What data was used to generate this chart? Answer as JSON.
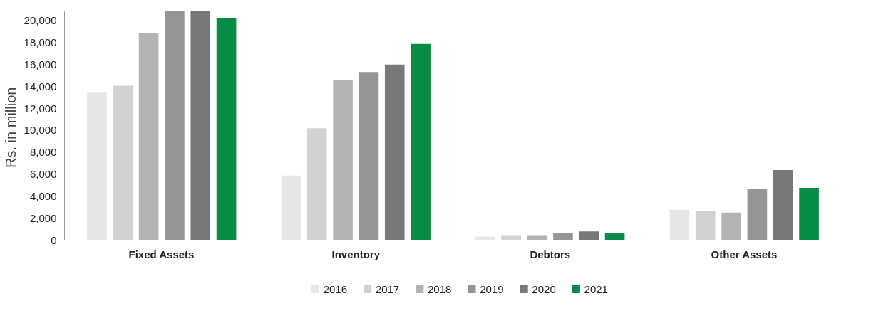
{
  "chart_data": {
    "type": "bar",
    "ylabel": "Rs.  in million",
    "categories": [
      "Fixed Assets",
      "Inventory",
      "Debtors",
      "Other Assets"
    ],
    "series": [
      {
        "name": "2016",
        "color": "#e5e6e8",
        "values": [
          13450,
          5890,
          330,
          2770
        ]
      },
      {
        "name": "2017",
        "color": "#d1d2d4",
        "values": [
          14080,
          10200,
          450,
          2640
        ]
      },
      {
        "name": "2018",
        "color": "#b2b3b5",
        "values": [
          18900,
          14640,
          450,
          2520
        ]
      },
      {
        "name": "2019",
        "color": "#949597",
        "values": [
          20900,
          15330,
          650,
          4710
        ]
      },
      {
        "name": "2020",
        "color": "#77787a",
        "values": [
          20900,
          16020,
          800,
          6400
        ]
      },
      {
        "name": "2021",
        "color": "#078c45",
        "values": [
          20270,
          17900,
          650,
          4770
        ]
      }
    ],
    "ylim": [
      0,
      20900
    ],
    "yticks": [
      0,
      {
        "value": 2000,
        "label": "2,000"
      },
      {
        "value": 4000,
        "label": "4,000"
      },
      {
        "value": 6000,
        "label": "6,000"
      },
      {
        "value": 8000,
        "label": "8,000"
      },
      {
        "value": 10000,
        "label": "10,000"
      },
      {
        "value": 12000,
        "label": "12,000"
      },
      {
        "value": 14000,
        "label": "14,000"
      },
      {
        "value": 16000,
        "label": "16,000"
      },
      {
        "value": 18000,
        "label": "18,000"
      },
      {
        "value": 20000,
        "label": "20,000"
      }
    ],
    "grid": false,
    "legend": "bottom"
  }
}
